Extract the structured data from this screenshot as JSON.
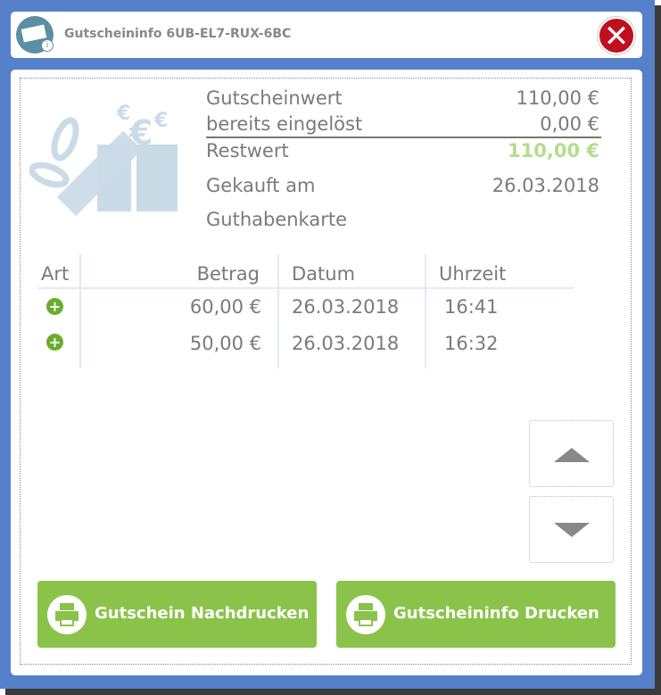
{
  "window": {
    "title": "Gutscheininfo 6UB-EL7-RUX-6BC",
    "close_symbol": "✕",
    "app_icon_info": "i"
  },
  "info": {
    "gutscheinwert_label": "Gutscheinwert",
    "gutscheinwert_value": "110,00 €",
    "eingeloest_label": "bereits eingelöst",
    "eingeloest_value": "0,00 €",
    "restwert_label": "Restwert",
    "restwert_value": "110,00 €",
    "gekauft_label": "Gekauft am",
    "gekauft_value": "26.03.2018",
    "typ": "Guthabenkarte"
  },
  "table": {
    "headers": [
      "Art",
      "Betrag",
      "Datum",
      "Uhrzeit"
    ],
    "rows": [
      {
        "art": "plus-icon",
        "betrag": "60,00 €",
        "datum": "26.03.2018",
        "uhrzeit": "16:41"
      },
      {
        "art": "plus-icon",
        "betrag": "50,00 €",
        "datum": "26.03.2018",
        "uhrzeit": "16:32"
      }
    ]
  },
  "buttons": {
    "reprint": "Gutschein Nachdrucken",
    "print_info": "Gutscheininfo Drucken"
  },
  "colors": {
    "frame": "#5680c9",
    "accent_green": "#8bc34a",
    "restwert": "#b5dc8e",
    "close": "#c0101f"
  }
}
